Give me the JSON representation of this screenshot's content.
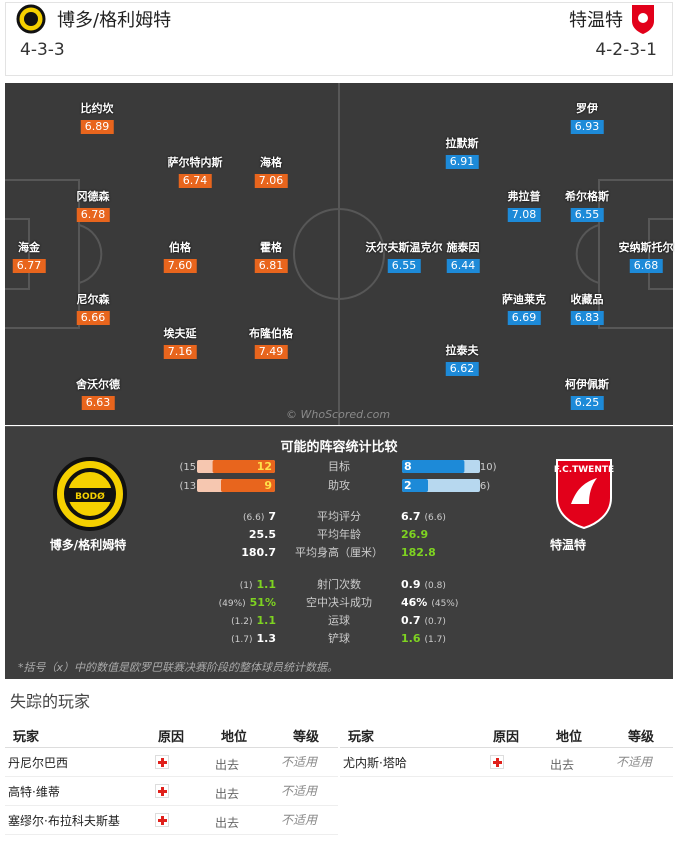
{
  "header": {
    "home": {
      "name": "博多/格利姆特",
      "formation": "4-3-3"
    },
    "away": {
      "name": "特温特",
      "formation": "4-2-3-1"
    }
  },
  "pitch": {
    "home_players": [
      {
        "name": "比约坎",
        "rating": "6.89"
      },
      {
        "name": "萨尔特内斯",
        "rating": "6.74"
      },
      {
        "name": "海格",
        "rating": "7.06"
      },
      {
        "name": "冈德森",
        "rating": "6.78"
      },
      {
        "name": "海金",
        "rating": "6.77"
      },
      {
        "name": "伯格",
        "rating": "7.60"
      },
      {
        "name": "霍格",
        "rating": "6.81"
      },
      {
        "name": "尼尔森",
        "rating": "6.66"
      },
      {
        "name": "埃夫延",
        "rating": "7.16"
      },
      {
        "name": "布隆伯格",
        "rating": "7.49"
      },
      {
        "name": "舍沃尔德",
        "rating": "6.63"
      }
    ],
    "away_players": [
      {
        "name": "罗伊",
        "rating": "6.93"
      },
      {
        "name": "拉默斯",
        "rating": "6.91"
      },
      {
        "name": "弗拉普",
        "rating": "7.08"
      },
      {
        "name": "希尔格斯",
        "rating": "6.55"
      },
      {
        "name": "沃尔夫斯温克尔",
        "rating": "6.55"
      },
      {
        "name": "施泰因",
        "rating": "6.44"
      },
      {
        "name": "安纳斯托尔",
        "rating": "6.68"
      },
      {
        "name": "萨迪莱克",
        "rating": "6.69"
      },
      {
        "name": "收藏品",
        "rating": "6.83"
      },
      {
        "name": "拉泰夫",
        "rating": "6.62"
      },
      {
        "name": "柯伊佩斯",
        "rating": "6.25"
      }
    ],
    "watermark": "© WhoScored.com"
  },
  "comparison": {
    "title": "可能的阵容统计比较",
    "home_team": "博多/格利姆特",
    "away_team": "特温特",
    "bars": [
      {
        "label": "目标",
        "home": {
          "value": 12,
          "total": {
            "value": 15,
            "label": "(15)"
          }
        },
        "away": {
          "value": 8,
          "total": {
            "value": 10,
            "label": "(10)"
          }
        }
      },
      {
        "label": "助攻",
        "home": {
          "value": 9,
          "total": {
            "value": 13,
            "label": "(13)"
          }
        },
        "away": {
          "value": 2,
          "total": {
            "value": 6,
            "label": "(6)"
          }
        }
      }
    ],
    "stats": [
      {
        "label": "平均评分",
        "home": "7",
        "home_ref": "(6.6)",
        "away": "6.7",
        "away_ref": "(6.6)"
      },
      {
        "label": "平均年龄",
        "home": "25.5",
        "away": "26.9",
        "highlight": "away"
      },
      {
        "label": "平均身高（厘米）",
        "home": "180.7",
        "away": "182.8",
        "highlight": "away"
      },
      {
        "label": "射门次数",
        "home": "1.1",
        "home_ref": "(1)",
        "away": "0.9",
        "away_ref": "(0.8)",
        "highlight": "home"
      },
      {
        "label": "空中决斗成功",
        "home": "51%",
        "home_ref": "(49%)",
        "away": "46%",
        "away_ref": "(45%)",
        "highlight": "home"
      },
      {
        "label": "运球",
        "home": "1.1",
        "home_ref": "(1.2)",
        "away": "0.7",
        "away_ref": "(0.7)",
        "highlight": "home"
      },
      {
        "label": "铲球",
        "home": "1.3",
        "home_ref": "(1.7)",
        "away": "1.6",
        "away_ref": "(1.7)",
        "highlight": "away"
      }
    ],
    "note": "*括号（x）中的数值是欧罗巴联赛决赛阶段的整体球员统计数据。"
  },
  "missing": {
    "title": "失踪的玩家",
    "columns": [
      "玩家",
      "原因",
      "地位",
      "等级"
    ],
    "home": [
      {
        "player": "丹尼尔巴西",
        "status": "出去",
        "level": "不适用"
      },
      {
        "player": "高特·维蒂",
        "status": "出去",
        "level": "不适用"
      },
      {
        "player": "塞缪尔·布拉科夫斯基",
        "status": "出去",
        "level": "不适用"
      }
    ],
    "away": [
      {
        "player": "尤内斯·塔哈",
        "status": "出去",
        "level": "不适用"
      }
    ]
  }
}
